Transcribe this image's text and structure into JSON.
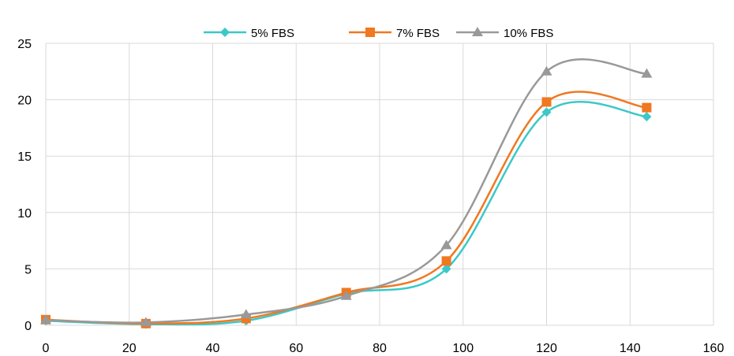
{
  "chart_data": {
    "type": "line",
    "title": "",
    "xlabel": "",
    "ylabel": "",
    "xlim": [
      0,
      160
    ],
    "ylim": [
      0,
      25
    ],
    "xticks": [
      0,
      20,
      40,
      60,
      80,
      100,
      120,
      140,
      160
    ],
    "yticks": [
      0,
      5,
      10,
      15,
      20,
      25
    ],
    "grid": true,
    "smooth": true,
    "legend_position": "top",
    "x": [
      0,
      24,
      48,
      72,
      96,
      120,
      144
    ],
    "series": [
      {
        "name": "5% FBS",
        "color": "#3cc8c8",
        "marker": "diamond",
        "values": [
          0.4,
          0.1,
          0.4,
          2.8,
          5.0,
          18.9,
          18.5
        ]
      },
      {
        "name": "7% FBS",
        "color": "#f07820",
        "marker": "square",
        "values": [
          0.5,
          0.15,
          0.6,
          2.9,
          5.7,
          19.8,
          19.3
        ]
      },
      {
        "name": "10% FBS",
        "color": "#999999",
        "marker": "triangle",
        "values": [
          0.45,
          0.25,
          0.95,
          2.6,
          7.1,
          22.5,
          22.3
        ]
      }
    ]
  }
}
